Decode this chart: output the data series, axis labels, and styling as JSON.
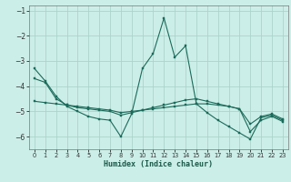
{
  "xlabel": "Humidex (Indice chaleur)",
  "background_color": "#cceee8",
  "grid_color": "#aad4cc",
  "line_color": "#1a6b5a",
  "x_values": [
    0,
    1,
    2,
    3,
    4,
    5,
    6,
    7,
    8,
    9,
    10,
    11,
    12,
    13,
    14,
    15,
    16,
    17,
    18,
    19,
    20,
    21,
    22,
    23
  ],
  "series1": [
    -3.3,
    -3.8,
    -4.4,
    -4.8,
    -5.0,
    -5.2,
    -5.3,
    -5.35,
    -6.0,
    -5.1,
    -3.3,
    -2.7,
    -1.3,
    -2.85,
    -2.4,
    -4.7,
    -5.05,
    -5.35,
    -5.6,
    -5.85,
    -6.1,
    -5.25,
    -5.15,
    -5.35
  ],
  "series2": [
    -3.7,
    -3.85,
    -4.5,
    -4.75,
    -4.85,
    -4.9,
    -4.95,
    -5.0,
    -5.15,
    -5.05,
    -4.95,
    -4.85,
    -4.75,
    -4.65,
    -4.55,
    -4.5,
    -4.6,
    -4.7,
    -4.8,
    -4.9,
    -5.5,
    -5.2,
    -5.1,
    -5.3
  ],
  "series3": [
    -4.6,
    -4.65,
    -4.7,
    -4.75,
    -4.8,
    -4.85,
    -4.9,
    -4.95,
    -5.05,
    -5.0,
    -4.95,
    -4.9,
    -4.85,
    -4.8,
    -4.75,
    -4.7,
    -4.7,
    -4.75,
    -4.8,
    -4.9,
    -5.8,
    -5.35,
    -5.2,
    -5.4
  ],
  "ylim": [
    -6.5,
    -0.8
  ],
  "xlim": [
    -0.5,
    23.5
  ],
  "yticks": [
    -1,
    -2,
    -3,
    -4,
    -5,
    -6
  ],
  "xticks": [
    0,
    1,
    2,
    3,
    4,
    5,
    6,
    7,
    8,
    9,
    10,
    11,
    12,
    13,
    14,
    15,
    16,
    17,
    18,
    19,
    20,
    21,
    22,
    23
  ]
}
